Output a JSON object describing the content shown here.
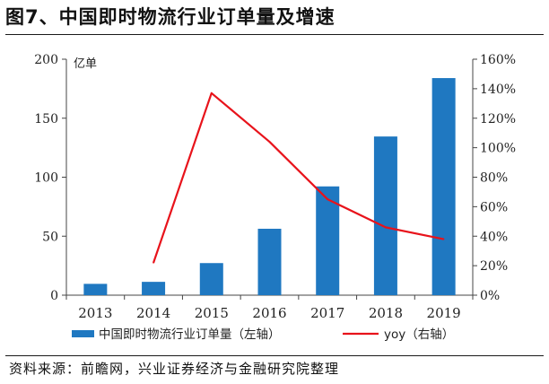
{
  "title": "图7、中国即时物流行业订单量及增速",
  "source": "资料来源：前瞻网，兴业证券经济与金融研究院整理",
  "chart_data": {
    "type": "bar+line",
    "categories": [
      "2013",
      "2014",
      "2015",
      "2016",
      "2017",
      "2018",
      "2019"
    ],
    "left_axis_unit": "亿单",
    "left_axis": {
      "min": 0,
      "max": 200,
      "ticks": [
        0,
        50,
        100,
        150,
        200
      ]
    },
    "right_axis": {
      "min": 0,
      "max": 160,
      "ticks": [
        "0%",
        "20%",
        "40%",
        "60%",
        "80%",
        "100%",
        "120%",
        "140%",
        "160%"
      ],
      "tick_values": [
        0,
        20,
        40,
        60,
        80,
        100,
        120,
        140,
        160
      ]
    },
    "series": [
      {
        "name": "中国即时物流行业订单量（左轴）",
        "type": "bar",
        "axis": "left",
        "color": "#1f78c1",
        "values": [
          9.6,
          11.3,
          27.2,
          56.3,
          92.2,
          134.5,
          184.0
        ]
      },
      {
        "name": "yoy（右轴）",
        "type": "line",
        "axis": "right",
        "color": "#e8131b",
        "values": [
          null,
          22,
          137,
          104,
          65,
          46,
          38
        ]
      }
    ],
    "legend": "bottom",
    "grid": false
  }
}
